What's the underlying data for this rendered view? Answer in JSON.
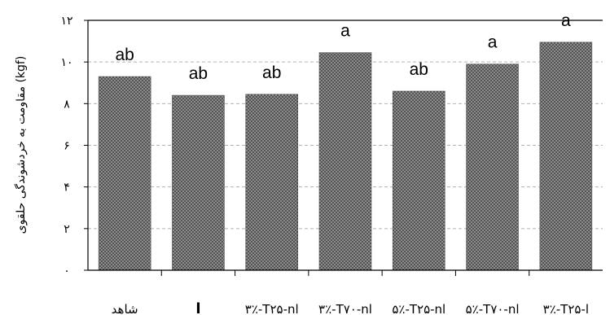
{
  "chart_data": {
    "type": "bar",
    "categories": [
      "شاهد",
      "l",
      "۳٪-T۲۵-nl",
      "۳٪-T۷۰-nl",
      "۵٪-T۲۵-nl",
      "۵٪-T۷۰-nl",
      "۳٪-T۲۵-l"
    ],
    "values": [
      9.3,
      8.4,
      8.45,
      10.45,
      8.6,
      9.9,
      10.95
    ],
    "data_labels": [
      "ab",
      "ab",
      "ab",
      "a",
      "ab",
      "a",
      "a"
    ],
    "ylabel": "مقاومت به خردشوندگی حلقوی (kgf)",
    "xlabel": "",
    "ylim": [
      0,
      12
    ],
    "yticks": [
      0,
      2,
      4,
      6,
      8,
      10,
      12
    ],
    "ytick_labels": [
      "۰",
      "۲",
      "۴",
      "۶",
      "۸",
      "۱۰",
      "۱۲"
    ],
    "grid": true,
    "bar_fill": "#8c8c8c",
    "bar_dot": "#2a2a2a",
    "grid_color": "#b0b0b0"
  }
}
